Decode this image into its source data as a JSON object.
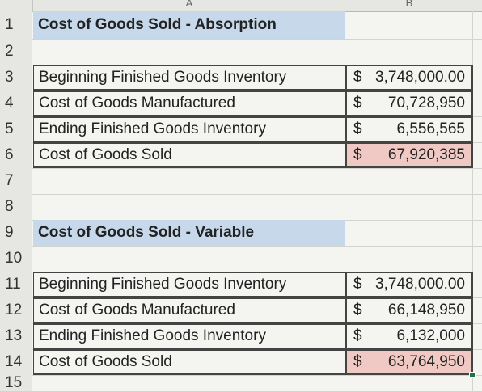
{
  "columns": [
    "A",
    "B"
  ],
  "rows": [
    {
      "num": "1",
      "a": "Cost of Goods Sold - Absorption",
      "type": "header"
    },
    {
      "num": "2",
      "a": "",
      "type": "blank"
    },
    {
      "num": "3",
      "a": "Beginning Finished Goods Inventory",
      "cur": "$",
      "b": "3,748,000.00",
      "type": "data"
    },
    {
      "num": "4",
      "a": "Cost of Goods Manufactured",
      "cur": "$",
      "b": "70,728,950",
      "type": "data"
    },
    {
      "num": "5",
      "a": "Ending Finished Goods Inventory",
      "cur": "$",
      "b": "6,556,565",
      "type": "data"
    },
    {
      "num": "6",
      "a": "Cost of Goods Sold",
      "cur": "$",
      "b": "67,920,385",
      "type": "total"
    },
    {
      "num": "7",
      "a": "",
      "type": "blank"
    },
    {
      "num": "8",
      "a": "",
      "type": "blank"
    },
    {
      "num": "9",
      "a": "Cost of Goods Sold - Variable",
      "type": "header"
    },
    {
      "num": "10",
      "a": "",
      "type": "blank"
    },
    {
      "num": "11",
      "a": "Beginning Finished Goods Inventory",
      "cur": "$",
      "b": "3,748,000.00",
      "type": "data"
    },
    {
      "num": "12",
      "a": "Cost of Goods Manufactured",
      "cur": "$",
      "b": "66,148,950",
      "type": "data"
    },
    {
      "num": "13",
      "a": "Ending Finished Goods Inventory",
      "cur": "$",
      "b": "6,132,000",
      "type": "data"
    },
    {
      "num": "14",
      "a": "Cost of Goods Sold",
      "cur": "$",
      "b": "63,764,950",
      "type": "total"
    },
    {
      "num": "15",
      "a": "",
      "type": "blank"
    }
  ],
  "colors": {
    "header_fill": "#c6d8ea",
    "total_fill": "#f1c9c4",
    "selection": "#217346"
  }
}
